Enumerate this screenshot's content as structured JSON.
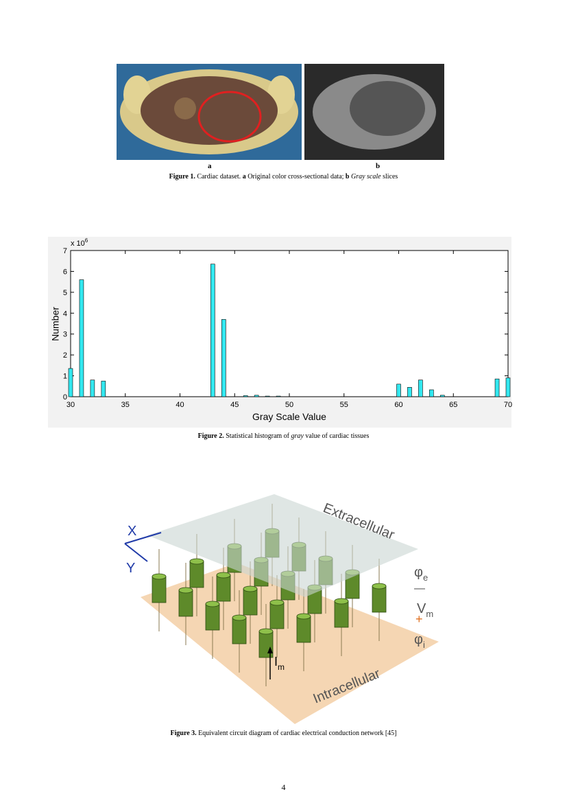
{
  "figure1": {
    "panel_a_label": "a",
    "panel_b_label": "b",
    "caption": [
      "Figure 1.",
      "Cardiac dataset.",
      "a",
      "Original color cross-sectional data;",
      "b",
      "Gray scale",
      "slices"
    ]
  },
  "chart_data": {
    "type": "bar",
    "x": [
      30,
      31,
      32,
      33,
      43,
      44,
      46,
      47,
      48,
      49,
      60,
      61,
      62,
      63,
      64,
      69,
      70
    ],
    "values": [
      1.35,
      5.6,
      0.8,
      0.75,
      6.35,
      3.7,
      0.05,
      0.07,
      0.03,
      0.03,
      0.6,
      0.45,
      0.8,
      0.33,
      0.07,
      0.85,
      0.9
    ],
    "color": "#33e8f0",
    "xlabel": "Gray Scale Value",
    "ylabel": "Number",
    "y_multiplier": {
      "base": "x 10",
      "exponent": "6"
    },
    "xlim": [
      30,
      70
    ],
    "ylim": [
      0,
      7
    ],
    "xticks": [
      30,
      35,
      40,
      45,
      50,
      55,
      60,
      65,
      70
    ],
    "yticks": [
      0,
      1,
      2,
      3,
      4,
      5,
      6,
      7
    ]
  },
  "figure2": {
    "caption": [
      "Figure 2.",
      "Statistical histogram of",
      "gray",
      "value of cardiac tissues"
    ]
  },
  "figure3": {
    "labels": {
      "extracellular": "Extracellular",
      "intracellular": "Intracellular",
      "x": "X",
      "y": "Y",
      "phi_e": {
        "main": "φ",
        "sub": "e"
      },
      "minus": "—",
      "v_m": {
        "main": "V",
        "sub": "m"
      },
      "plus": "+",
      "phi_i": {
        "main": "φ",
        "sub": "i"
      },
      "i_m": {
        "main": "I",
        "sub": "m"
      }
    },
    "caption": [
      "Figure 3.",
      "Equivalent circuit diagram of cardiac electrical conduction network [45]"
    ]
  },
  "page_number": "4"
}
